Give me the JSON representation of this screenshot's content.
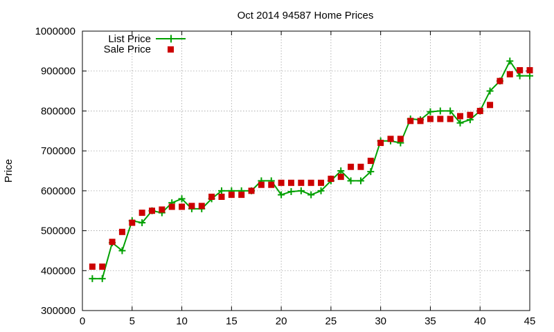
{
  "chart_data": {
    "type": "line",
    "title": "Oct 2014 94587 Home Prices",
    "xlabel": "",
    "ylabel": "Price",
    "xlim": [
      0,
      45
    ],
    "ylim": [
      300000,
      1000000
    ],
    "x_ticks": [
      "0",
      "5",
      "10",
      "15",
      "20",
      "25",
      "30",
      "35",
      "40",
      "45"
    ],
    "y_ticks": [
      "300000",
      "400000",
      "500000",
      "600000",
      "700000",
      "800000",
      "900000",
      "1000000"
    ],
    "grid": true,
    "legend_position": "top-left",
    "series": [
      {
        "name": "List Price",
        "style": "line-with-plus-markers",
        "color": "#00a000",
        "points": [
          [
            1,
            380000
          ],
          [
            2,
            380000
          ],
          [
            3,
            470000
          ],
          [
            4,
            450000
          ],
          [
            5,
            525000
          ],
          [
            6,
            520000
          ],
          [
            7,
            550000
          ],
          [
            8,
            545000
          ],
          [
            9,
            570000
          ],
          [
            10,
            580000
          ],
          [
            11,
            555000
          ],
          [
            12,
            555000
          ],
          [
            13,
            580000
          ],
          [
            14,
            600000
          ],
          [
            15,
            600000
          ],
          [
            16,
            600000
          ],
          [
            17,
            600000
          ],
          [
            18,
            625000
          ],
          [
            19,
            625000
          ],
          [
            20,
            590000
          ],
          [
            21,
            598000
          ],
          [
            22,
            600000
          ],
          [
            23,
            590000
          ],
          [
            24,
            600000
          ],
          [
            25,
            625000
          ],
          [
            26,
            650000
          ],
          [
            27,
            625000
          ],
          [
            28,
            625000
          ],
          [
            29,
            648000
          ],
          [
            30,
            725000
          ],
          [
            31,
            725000
          ],
          [
            32,
            720000
          ],
          [
            33,
            780000
          ],
          [
            34,
            778000
          ],
          [
            35,
            798000
          ],
          [
            36,
            800000
          ],
          [
            37,
            800000
          ],
          [
            38,
            770000
          ],
          [
            39,
            778000
          ],
          [
            40,
            800000
          ],
          [
            41,
            850000
          ],
          [
            42,
            875000
          ],
          [
            43,
            925000
          ],
          [
            44,
            888000
          ],
          [
            45,
            888000
          ]
        ]
      },
      {
        "name": "Sale Price",
        "style": "square-markers",
        "color": "#cc0000",
        "points": [
          [
            1,
            410000
          ],
          [
            2,
            410000
          ],
          [
            3,
            472000
          ],
          [
            4,
            497000
          ],
          [
            5,
            520000
          ],
          [
            6,
            545000
          ],
          [
            7,
            550000
          ],
          [
            8,
            553000
          ],
          [
            9,
            560000
          ],
          [
            10,
            560000
          ],
          [
            11,
            562000
          ],
          [
            12,
            562000
          ],
          [
            13,
            585000
          ],
          [
            14,
            585000
          ],
          [
            15,
            590000
          ],
          [
            16,
            590000
          ],
          [
            17,
            600000
          ],
          [
            18,
            615000
          ],
          [
            19,
            615000
          ],
          [
            20,
            620000
          ],
          [
            21,
            620000
          ],
          [
            22,
            620000
          ],
          [
            23,
            620000
          ],
          [
            24,
            620000
          ],
          [
            25,
            630000
          ],
          [
            26,
            635000
          ],
          [
            27,
            660000
          ],
          [
            28,
            660000
          ],
          [
            29,
            675000
          ],
          [
            30,
            720000
          ],
          [
            31,
            730000
          ],
          [
            32,
            730000
          ],
          [
            33,
            775000
          ],
          [
            34,
            775000
          ],
          [
            35,
            780000
          ],
          [
            36,
            780000
          ],
          [
            37,
            780000
          ],
          [
            38,
            787000
          ],
          [
            39,
            790000
          ],
          [
            40,
            800000
          ],
          [
            41,
            815000
          ],
          [
            42,
            875000
          ],
          [
            43,
            892000
          ],
          [
            44,
            902000
          ],
          [
            45,
            902000
          ]
        ]
      }
    ]
  }
}
